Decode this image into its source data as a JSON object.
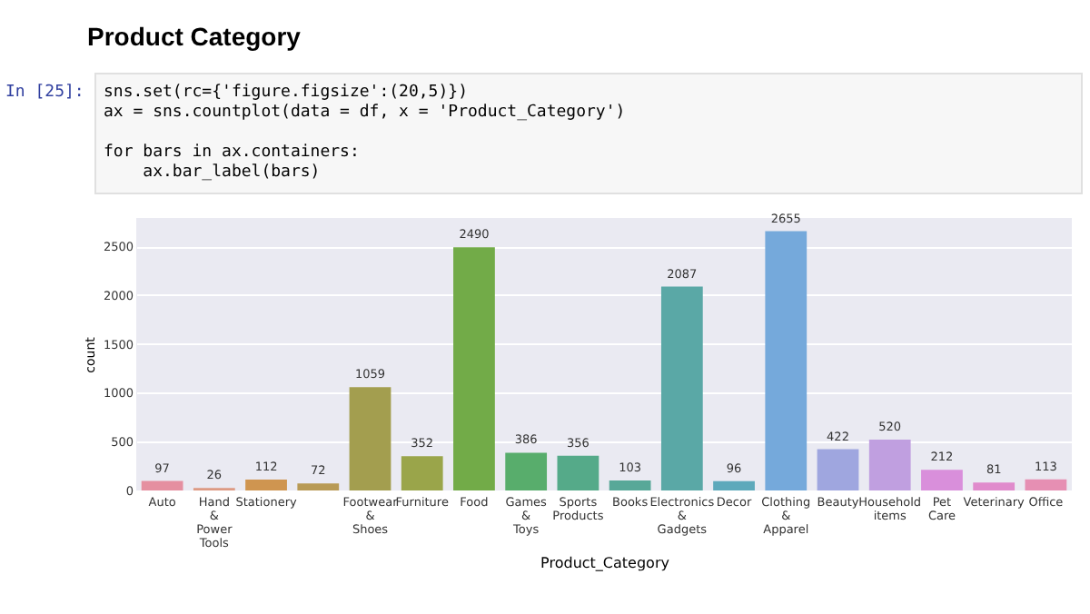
{
  "chart_data": {
    "type": "bar",
    "title": "Product Category",
    "annotations": [
      "In [25]:",
      "sns.set(rc={'figure.figsize':(20,5)})",
      "ax = sns.countplot(data = df, x = 'Product_Category')",
      "for bars in ax.containers:",
      "    ax.bar_label(bars)"
    ],
    "xlabel": "Product_Category",
    "ylabel": "count",
    "categories": [
      "Auto",
      "Hand & Power Tools",
      "Stationery",
      null,
      "Footwear & Shoes",
      "Furniture",
      "Food",
      "Games & Toys",
      "Sports Products",
      "Books",
      "Electronics & Gadgets",
      "Decor",
      "Clothing & Apparel",
      "Beauty",
      "Household items",
      "Pet Care",
      "Veterinary",
      "Office"
    ],
    "values": [
      97,
      26,
      112,
      72,
      1059,
      352,
      2490,
      386,
      356,
      103,
      2087,
      96,
      2655,
      422,
      520,
      212,
      81,
      113
    ],
    "colors": [
      "#e58fa0",
      "#dd9a83",
      "#cf9550",
      "#b89a55",
      "#a39e4f",
      "#9aa54a",
      "#72ab48",
      "#58ad6c",
      "#55aa89",
      "#58a898",
      "#5aa8a6",
      "#5ea9bb",
      "#75a9db",
      "#9fa6df",
      "#c09fe0",
      "#d98fdb",
      "#e08bcc",
      "#e68fb3"
    ],
    "ylim": [
      0,
      2790
    ],
    "yticks": [
      0,
      500,
      1000,
      1500,
      2000,
      2500
    ],
    "grid": "y",
    "data_labels": true
  }
}
